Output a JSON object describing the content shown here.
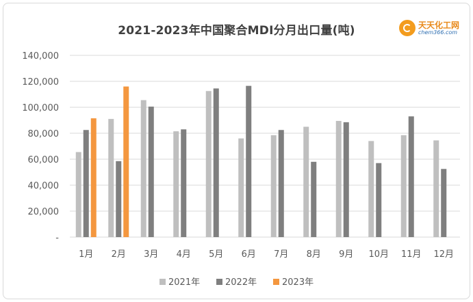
{
  "logo": {
    "name": "天天化工网",
    "site": "chem366.com"
  },
  "colors": {
    "2021年": "#bfbfbf",
    "2022年": "#7f7f7f",
    "2023年": "#f4973f",
    "grid": "#d9d9d9",
    "axis_text": "#595959"
  },
  "chart_data": {
    "type": "bar",
    "title": "2021-2023年中国聚合MDI分月出口量(吨)",
    "xlabel": "",
    "ylabel": "",
    "categories": [
      "1月",
      "2月",
      "3月",
      "4月",
      "5月",
      "6月",
      "7月",
      "8月",
      "9月",
      "10月",
      "11月",
      "12月"
    ],
    "series": [
      {
        "name": "2021年",
        "values": [
          65500,
          91000,
          105500,
          81500,
          112500,
          76000,
          78500,
          85000,
          89500,
          74000,
          78500,
          74500
        ]
      },
      {
        "name": "2022年",
        "values": [
          82500,
          58500,
          100500,
          83000,
          114500,
          116500,
          82500,
          58000,
          88500,
          57000,
          93000,
          52500
        ]
      },
      {
        "name": "2023年",
        "values": [
          91500,
          116000,
          null,
          null,
          null,
          null,
          null,
          null,
          null,
          null,
          null,
          null
        ]
      }
    ],
    "ylim": [
      0,
      140000
    ],
    "yticks": [
      0,
      20000,
      40000,
      60000,
      80000,
      100000,
      120000,
      140000
    ],
    "ytick_labels": [
      "-",
      "20,000",
      "40,000",
      "60,000",
      "80,000",
      "100,000",
      "120,000",
      "140,000"
    ],
    "grid": true,
    "legend_position": "bottom"
  }
}
